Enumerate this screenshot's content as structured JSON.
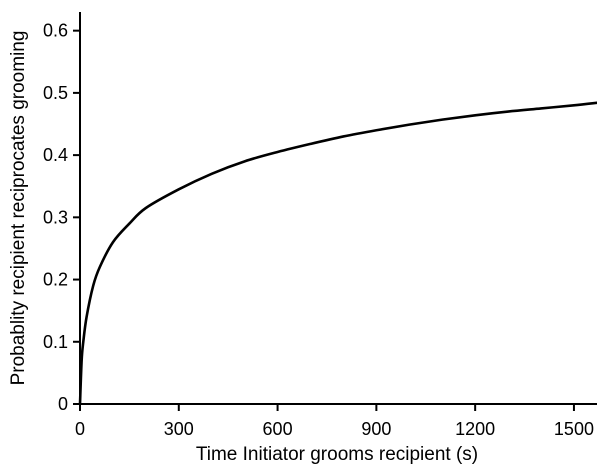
{
  "chart_data": {
    "type": "line",
    "title": "",
    "xlabel": "Time Initiator grooms recipient (s)",
    "ylabel": "Probablity recipient reciprocates grooming",
    "xlim": [
      0,
      1570
    ],
    "ylim": [
      0,
      0.63
    ],
    "xticks": [
      0,
      300,
      600,
      900,
      1200,
      1500
    ],
    "xtick_labels": [
      "0",
      "300",
      "600",
      "900",
      "1200",
      "1500"
    ],
    "yticks": [
      0,
      0.1,
      0.2,
      0.3,
      0.4,
      0.5,
      0.6
    ],
    "ytick_labels": [
      "0",
      "0.1",
      "0.2",
      "0.3",
      "0.4",
      "0.5",
      "0.6"
    ],
    "grid": false,
    "legend": "none",
    "series": [
      {
        "color": "#000000",
        "x": [
          0,
          5,
          10,
          20,
          40,
          60,
          100,
          150,
          200,
          300,
          400,
          500,
          600,
          700,
          800,
          900,
          1000,
          1100,
          1200,
          1300,
          1400,
          1500,
          1570
        ],
        "y": [
          0,
          0.07,
          0.1,
          0.14,
          0.19,
          0.22,
          0.26,
          0.29,
          0.315,
          0.345,
          0.37,
          0.39,
          0.405,
          0.418,
          0.43,
          0.44,
          0.449,
          0.457,
          0.464,
          0.47,
          0.475,
          0.48,
          0.484
        ]
      }
    ]
  }
}
